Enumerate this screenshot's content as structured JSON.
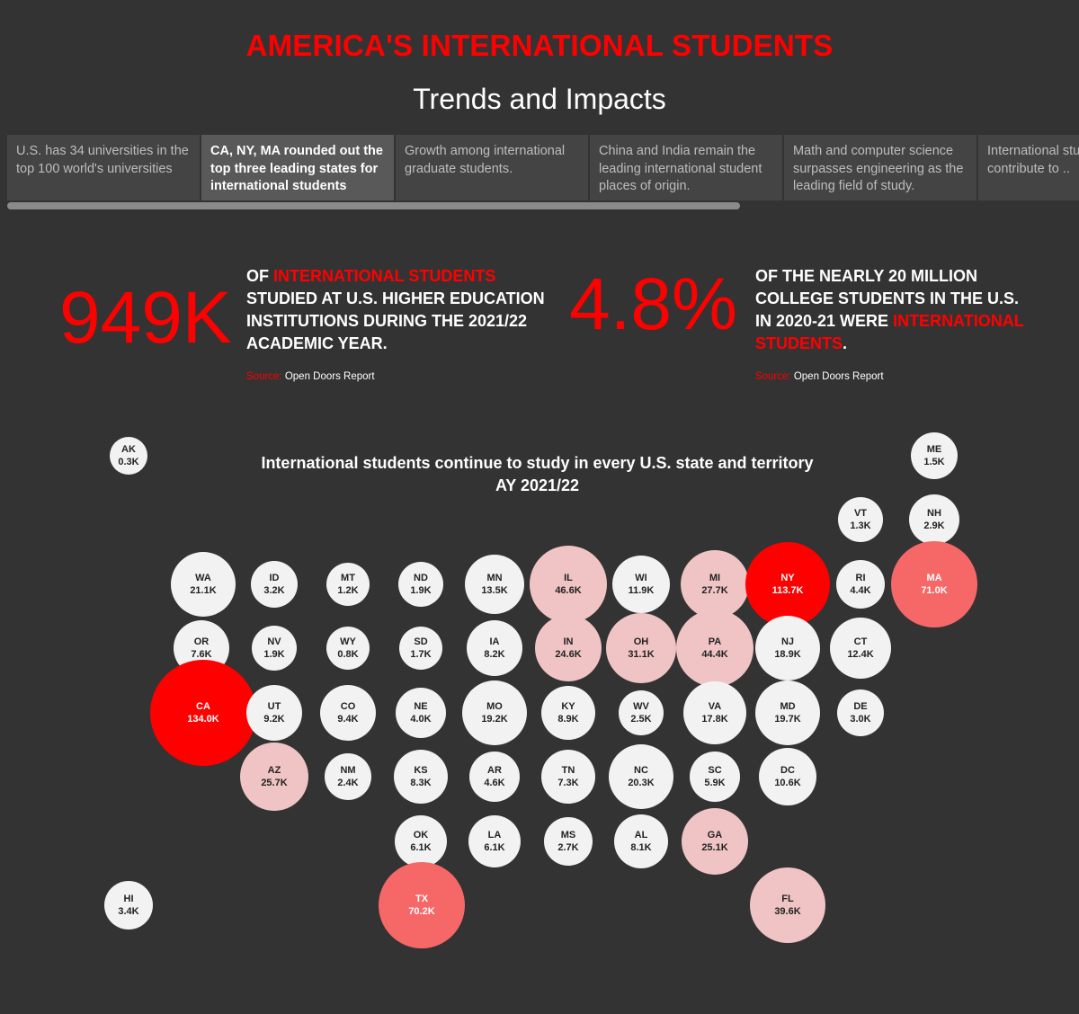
{
  "header": {
    "title": "AMERICA'S INTERNATIONAL STUDENTS",
    "subtitle": "Trends and Impacts"
  },
  "tabs": [
    {
      "label": "U.S. has 34 universities in the top 100 world's universities",
      "active": false
    },
    {
      "label": "CA, NY, MA rounded out the top three leading states for international students",
      "active": true
    },
    {
      "label": "Growth among international graduate students.",
      "active": false
    },
    {
      "label": "China and India remain the leading international student places of origin.",
      "active": false
    },
    {
      "label": "Math and computer science surpasses engineering as the leading field of study.",
      "active": false
    },
    {
      "label": "International students contribute to ..",
      "active": false
    }
  ],
  "stats": {
    "left": {
      "number": "949K",
      "text_pre": "OF ",
      "text_highlight": "INTERNATIONAL STUDENTS",
      "text_post": " STUDIED AT U.S. HIGHER EDUCATION INSTITUTIONS DURING THE 2021/22 ACADEMIC YEAR.",
      "source_label": "Source:",
      "source_value": "Open Doors Report"
    },
    "right": {
      "number": "4.8%",
      "text_pre": "OF THE NEARLY 20 MILLION COLLEGE STUDENTS IN THE U.S. IN 2020-21 WERE ",
      "text_highlight": "INTERNATIONAL STUDENTS",
      "text_post": ".",
      "source_label": "Source:",
      "source_value": "Open Doors Report"
    }
  },
  "map": {
    "title_line1": "International students continue to study in every U.S. state and territory",
    "title_line2": "AY 2021/22",
    "colors": {
      "max": "#ff0000",
      "high": "#f66868",
      "mid": "#f0c4c4",
      "low": "#f2f2f2"
    },
    "states": [
      {
        "code": "AK",
        "value": "0.3K"
      },
      {
        "code": "ME",
        "value": "1.5K"
      },
      {
        "code": "VT",
        "value": "1.3K"
      },
      {
        "code": "NH",
        "value": "2.9K"
      },
      {
        "code": "WA",
        "value": "21.1K"
      },
      {
        "code": "ID",
        "value": "3.2K"
      },
      {
        "code": "MT",
        "value": "1.2K"
      },
      {
        "code": "ND",
        "value": "1.9K"
      },
      {
        "code": "MN",
        "value": "13.5K"
      },
      {
        "code": "IL",
        "value": "46.6K"
      },
      {
        "code": "WI",
        "value": "11.9K"
      },
      {
        "code": "MI",
        "value": "27.7K"
      },
      {
        "code": "NY",
        "value": "113.7K"
      },
      {
        "code": "RI",
        "value": "4.4K"
      },
      {
        "code": "MA",
        "value": "71.0K"
      },
      {
        "code": "OR",
        "value": "7.6K"
      },
      {
        "code": "NV",
        "value": "1.9K"
      },
      {
        "code": "WY",
        "value": "0.8K"
      },
      {
        "code": "SD",
        "value": "1.7K"
      },
      {
        "code": "IA",
        "value": "8.2K"
      },
      {
        "code": "IN",
        "value": "24.6K"
      },
      {
        "code": "OH",
        "value": "31.1K"
      },
      {
        "code": "PA",
        "value": "44.4K"
      },
      {
        "code": "NJ",
        "value": "18.9K"
      },
      {
        "code": "CT",
        "value": "12.4K"
      },
      {
        "code": "CA",
        "value": "134.0K"
      },
      {
        "code": "UT",
        "value": "9.2K"
      },
      {
        "code": "CO",
        "value": "9.4K"
      },
      {
        "code": "NE",
        "value": "4.0K"
      },
      {
        "code": "MO",
        "value": "19.2K"
      },
      {
        "code": "KY",
        "value": "8.9K"
      },
      {
        "code": "WV",
        "value": "2.5K"
      },
      {
        "code": "VA",
        "value": "17.8K"
      },
      {
        "code": "MD",
        "value": "19.7K"
      },
      {
        "code": "DE",
        "value": "3.0K"
      },
      {
        "code": "AZ",
        "value": "25.7K"
      },
      {
        "code": "NM",
        "value": "2.4K"
      },
      {
        "code": "KS",
        "value": "8.3K"
      },
      {
        "code": "AR",
        "value": "4.6K"
      },
      {
        "code": "TN",
        "value": "7.3K"
      },
      {
        "code": "NC",
        "value": "20.3K"
      },
      {
        "code": "SC",
        "value": "5.9K"
      },
      {
        "code": "DC",
        "value": "10.6K"
      },
      {
        "code": "OK",
        "value": "6.1K"
      },
      {
        "code": "LA",
        "value": "6.1K"
      },
      {
        "code": "MS",
        "value": "2.7K"
      },
      {
        "code": "AL",
        "value": "8.1K"
      },
      {
        "code": "GA",
        "value": "25.1K"
      },
      {
        "code": "HI",
        "value": "3.4K"
      },
      {
        "code": "TX",
        "value": "70.2K"
      },
      {
        "code": "FL",
        "value": "39.6K"
      }
    ]
  }
}
